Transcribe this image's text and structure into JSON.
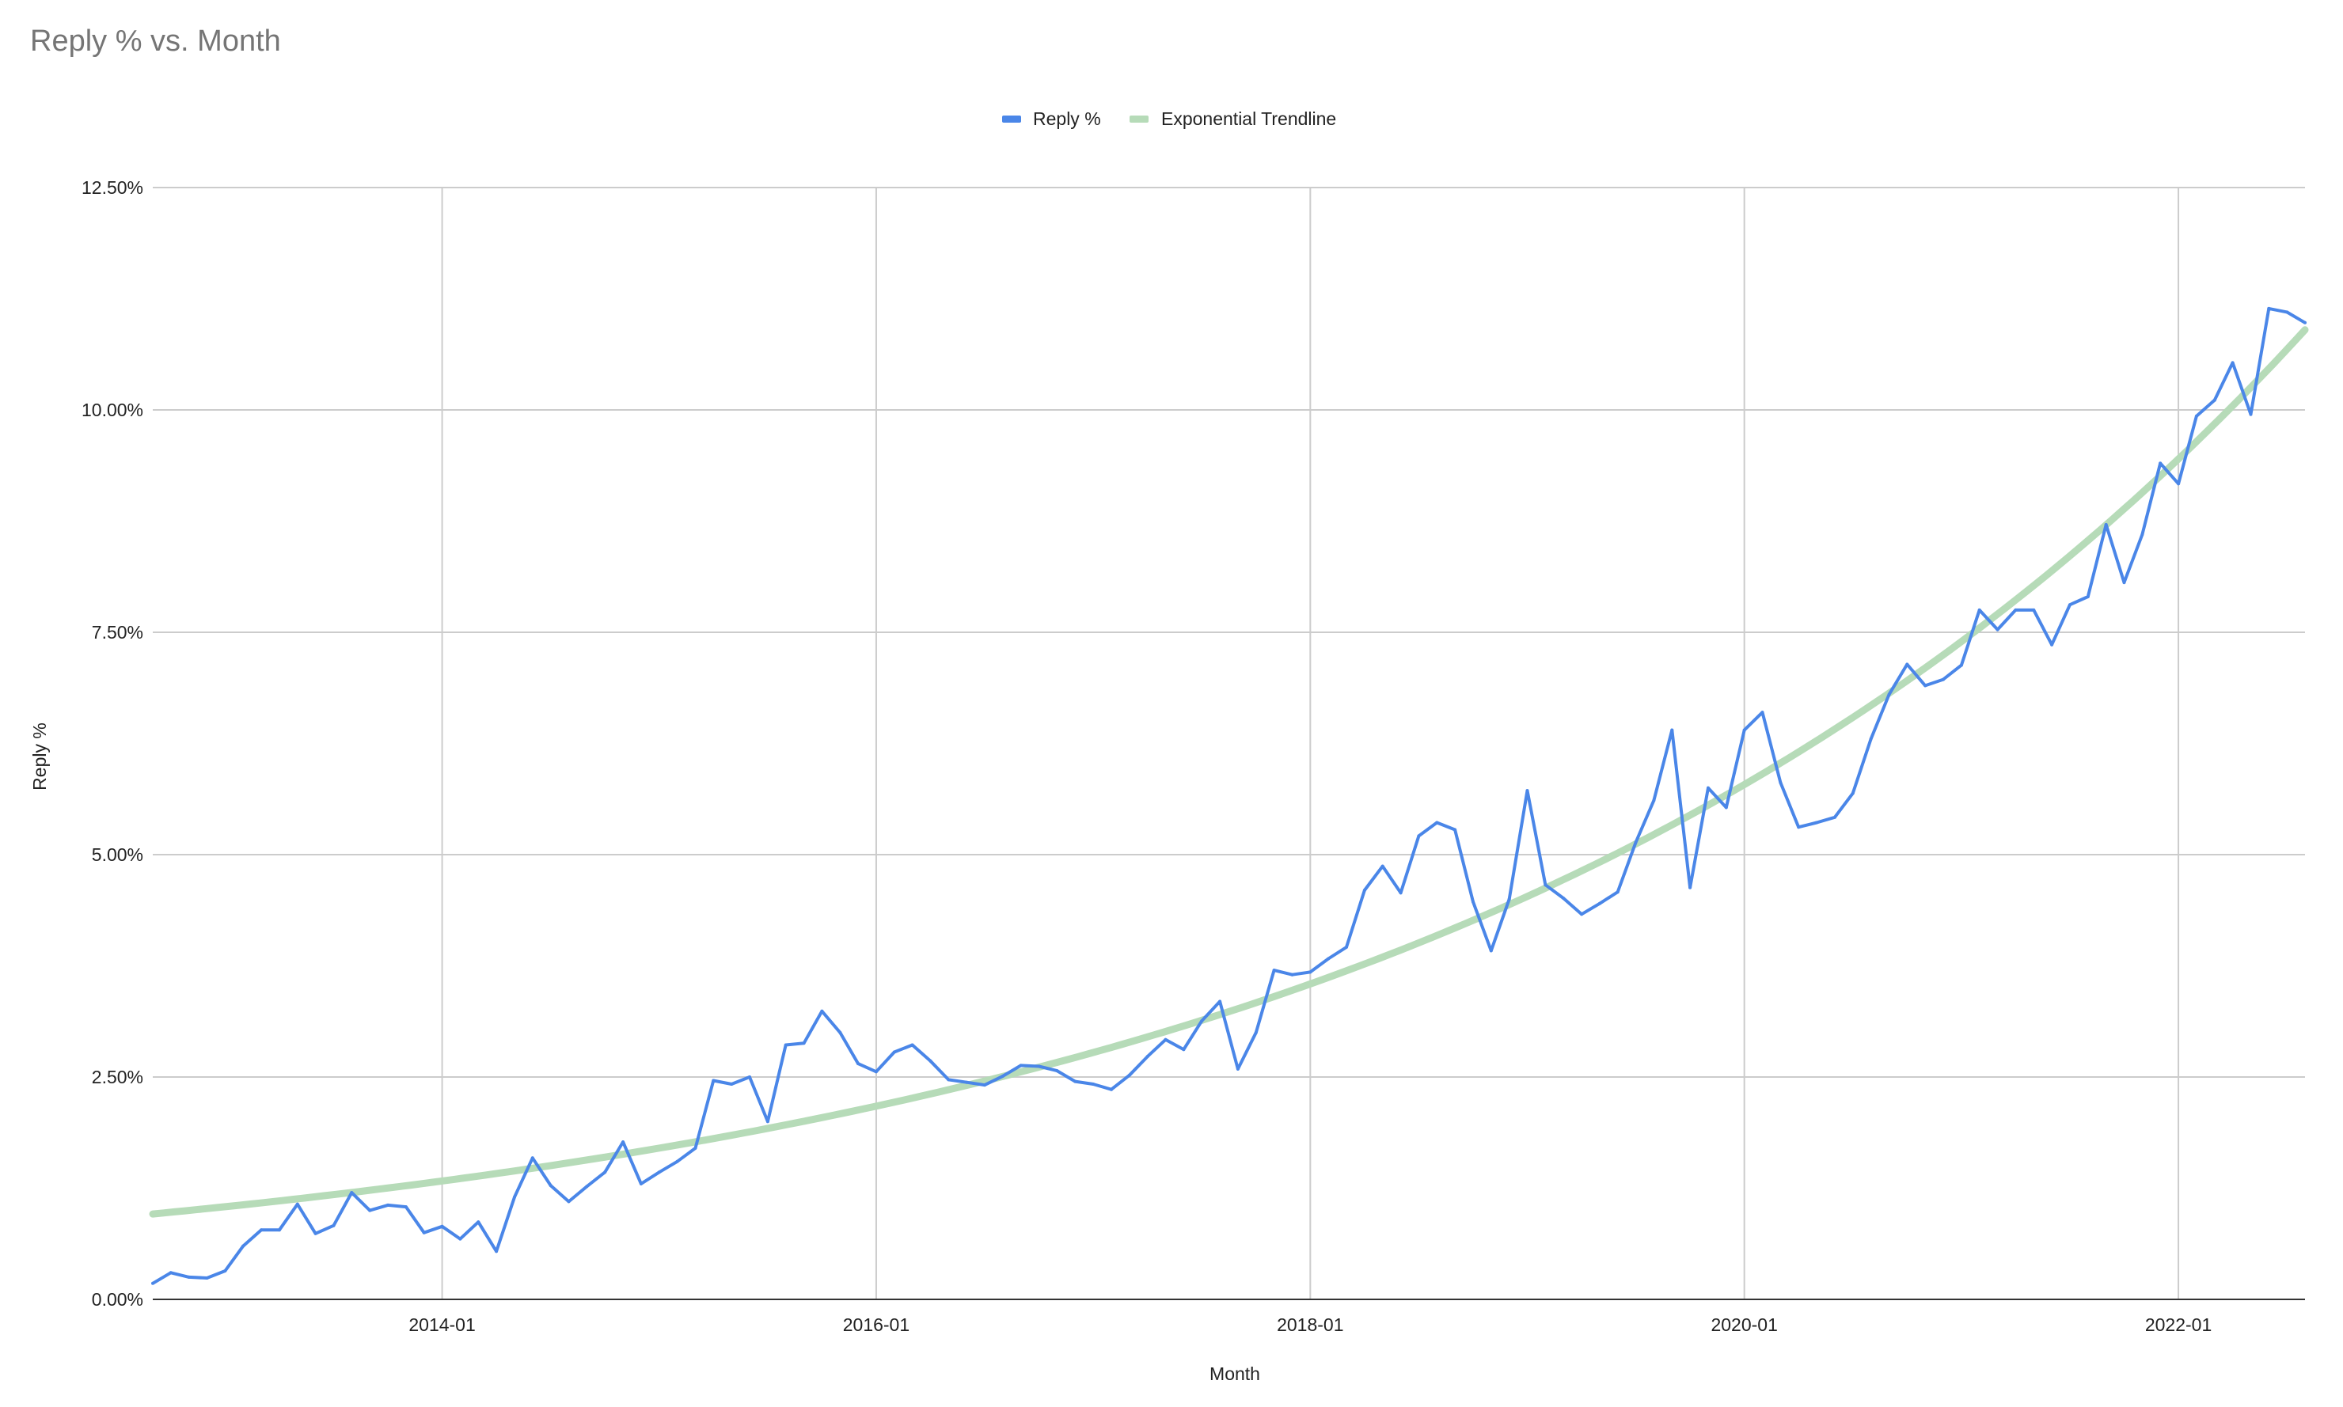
{
  "chart_data": {
    "type": "line",
    "title": "Reply % vs. Month",
    "xlabel": "Month",
    "ylabel": "Reply %",
    "ylim": [
      0,
      0.125
    ],
    "y_ticks": [
      "0.00%",
      "2.50%",
      "5.00%",
      "7.50%",
      "10.00%",
      "12.50%"
    ],
    "x_ticks": [
      "2014-01",
      "2016-01",
      "2018-01",
      "2020-01",
      "2022-01"
    ],
    "x_range": [
      "2012-09",
      "2022-08"
    ],
    "grid": true,
    "legend_position": "top",
    "colors": {
      "reply": "#4a86e8",
      "trend": "#b6dbb8",
      "grid": "#cccccc",
      "title": "#757575"
    },
    "series": [
      {
        "name": "Reply %",
        "x": [
          "2012-09",
          "2012-10",
          "2012-11",
          "2012-12",
          "2013-01",
          "2013-02",
          "2013-03",
          "2013-04",
          "2013-05",
          "2013-06",
          "2013-07",
          "2013-08",
          "2013-09",
          "2013-10",
          "2013-11",
          "2013-12",
          "2014-01",
          "2014-02",
          "2014-03",
          "2014-04",
          "2014-05",
          "2014-06",
          "2014-07",
          "2014-08",
          "2014-09",
          "2014-10",
          "2014-11",
          "2014-12",
          "2015-01",
          "2015-02",
          "2015-03",
          "2015-04",
          "2015-05",
          "2015-06",
          "2015-07",
          "2015-08",
          "2015-09",
          "2015-10",
          "2015-11",
          "2015-12",
          "2016-01",
          "2016-02",
          "2016-03",
          "2016-04",
          "2016-05",
          "2016-06",
          "2016-07",
          "2016-08",
          "2016-09",
          "2016-10",
          "2016-11",
          "2016-12",
          "2017-01",
          "2017-02",
          "2017-03",
          "2017-04",
          "2017-05",
          "2017-06",
          "2017-07",
          "2017-08",
          "2017-09",
          "2017-10",
          "2017-11",
          "2017-12",
          "2018-01",
          "2018-02",
          "2018-03",
          "2018-04",
          "2018-05",
          "2018-06",
          "2018-07",
          "2018-08",
          "2018-09",
          "2018-10",
          "2018-11",
          "2018-12",
          "2019-01",
          "2019-02",
          "2019-03",
          "2019-04",
          "2019-05",
          "2019-06",
          "2019-07",
          "2019-08",
          "2019-09",
          "2019-10",
          "2019-11",
          "2019-12",
          "2020-01",
          "2020-02",
          "2020-03",
          "2020-04",
          "2020-05",
          "2020-06",
          "2020-07",
          "2020-08",
          "2020-09",
          "2020-10",
          "2020-11",
          "2020-12",
          "2021-01",
          "2021-02",
          "2021-03",
          "2021-04",
          "2021-05",
          "2021-06",
          "2021-07",
          "2021-08",
          "2021-09",
          "2021-10",
          "2021-11",
          "2021-12",
          "2022-01",
          "2022-02",
          "2022-03",
          "2022-04",
          "2022-05",
          "2022-06",
          "2022-07",
          "2022-08"
        ],
        "values": [
          0.0018,
          0.003,
          0.0025,
          0.0024,
          0.0032,
          0.006,
          0.0078,
          0.0078,
          0.0107,
          0.0074,
          0.0083,
          0.012,
          0.01,
          0.0106,
          0.0104,
          0.0075,
          0.0082,
          0.0068,
          0.0087,
          0.0054,
          0.0115,
          0.0159,
          0.0128,
          0.011,
          0.0127,
          0.0143,
          0.0177,
          0.013,
          0.0143,
          0.0155,
          0.017,
          0.0246,
          0.0242,
          0.025,
          0.02,
          0.0286,
          0.0288,
          0.0324,
          0.03,
          0.0265,
          0.0256,
          0.0278,
          0.0286,
          0.0268,
          0.0247,
          0.0244,
          0.0241,
          0.0251,
          0.0263,
          0.0262,
          0.0257,
          0.0245,
          0.0242,
          0.0236,
          0.0252,
          0.0273,
          0.0292,
          0.0281,
          0.0313,
          0.0335,
          0.0259,
          0.03,
          0.037,
          0.0365,
          0.0368,
          0.0383,
          0.0396,
          0.046,
          0.0487,
          0.0457,
          0.0521,
          0.0536,
          0.0528,
          0.0447,
          0.0392,
          0.045,
          0.0572,
          0.0466,
          0.0451,
          0.0433,
          0.0445,
          0.0458,
          0.0514,
          0.0561,
          0.064,
          0.0463,
          0.0575,
          0.0553,
          0.064,
          0.066,
          0.0581,
          0.0531,
          0.0536,
          0.0542,
          0.0569,
          0.063,
          0.068,
          0.0714,
          0.069,
          0.0697,
          0.0713,
          0.0775,
          0.0753,
          0.0775,
          0.0775,
          0.0736,
          0.0781,
          0.079,
          0.0871,
          0.0806,
          0.086,
          0.094,
          0.0917,
          0.0993,
          0.1011,
          0.1053,
          0.0995,
          0.1114,
          0.111,
          0.1098
        ]
      },
      {
        "name": "Exponential Trendline",
        "type": "exponential",
        "start_value": 0.0096,
        "end_value": 0.109
      }
    ]
  }
}
